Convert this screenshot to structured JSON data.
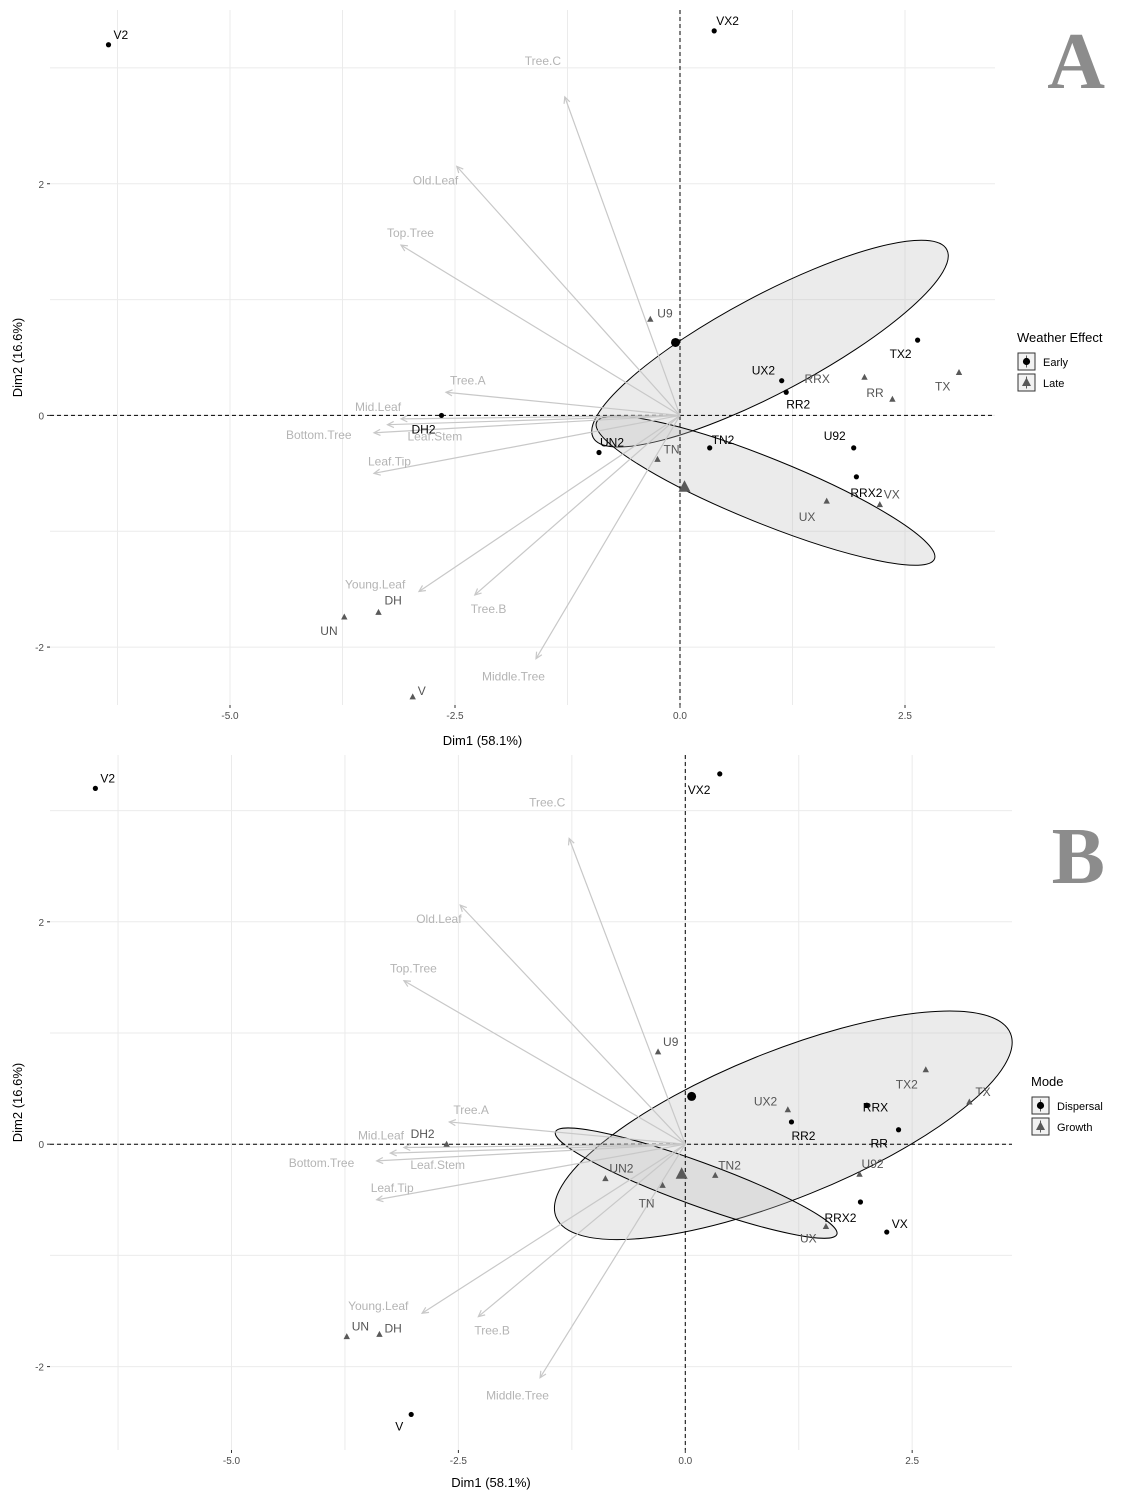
{
  "chart_data": [
    {
      "type": "scatter",
      "panel_label": "A",
      "xlabel": "Dim1 (58.1%)",
      "ylabel": "Dim2 (16.6%)",
      "xlim": [
        -7.0,
        3.5
      ],
      "ylim": [
        -2.5,
        3.5
      ],
      "x_ticks": [
        {
          "value": -5.0,
          "label": "-5.0"
        },
        {
          "value": -2.5,
          "label": "-2.5"
        },
        {
          "value": 0.0,
          "label": "0.0"
        },
        {
          "value": 2.5,
          "label": "2.5"
        }
      ],
      "y_ticks": [
        {
          "value": -2,
          "label": "-2"
        },
        {
          "value": 0,
          "label": "0"
        },
        {
          "value": 2,
          "label": "2"
        }
      ],
      "grid": true,
      "legend": {
        "title": "Weather Effect",
        "position": "right",
        "items": [
          {
            "label": "Early",
            "shape": "circle",
            "color": "#000000"
          },
          {
            "label": "Late",
            "shape": "triangle",
            "color": "#595959"
          }
        ]
      },
      "points": [
        {
          "label": "V2",
          "x": -6.35,
          "y": 3.2,
          "group": "Early"
        },
        {
          "label": "VX2",
          "x": 0.38,
          "y": 3.32,
          "group": "Early"
        },
        {
          "label": "TX2",
          "x": 2.64,
          "y": 0.65,
          "group": "Early"
        },
        {
          "label": "UX2",
          "x": 1.13,
          "y": 0.3,
          "group": "Early"
        },
        {
          "label": "RR2",
          "x": 1.18,
          "y": 0.2,
          "group": "Early"
        },
        {
          "label": "U92",
          "x": 1.93,
          "y": -0.28,
          "group": "Early"
        },
        {
          "label": "RRX2",
          "x": 1.96,
          "y": -0.53,
          "group": "Early"
        },
        {
          "label": "TN2",
          "x": 0.33,
          "y": -0.28,
          "group": "Early"
        },
        {
          "label": "UN2",
          "x": -0.9,
          "y": -0.32,
          "group": "Early"
        },
        {
          "label": "DH2",
          "x": -2.65,
          "y": 0.0,
          "group": "Early"
        },
        {
          "label": "U9",
          "x": -0.33,
          "y": 0.83,
          "group": "Late"
        },
        {
          "label": "RRX",
          "x": 2.05,
          "y": 0.33,
          "group": "Late"
        },
        {
          "label": "RR",
          "x": 2.36,
          "y": 0.14,
          "group": "Late"
        },
        {
          "label": "TX",
          "x": 3.1,
          "y": 0.37,
          "group": "Late"
        },
        {
          "label": "VX",
          "x": 2.22,
          "y": -0.77,
          "group": "Late"
        },
        {
          "label": "UX",
          "x": 1.63,
          "y": -0.74,
          "group": "Late"
        },
        {
          "label": "TN",
          "x": -0.25,
          "y": -0.38,
          "group": "Late"
        },
        {
          "label": "DH",
          "x": -3.35,
          "y": -1.7,
          "group": "Late"
        },
        {
          "label": "UN",
          "x": -3.73,
          "y": -1.74,
          "group": "Late"
        },
        {
          "label": "V",
          "x": -2.97,
          "y": -2.43,
          "group": "Late"
        }
      ],
      "centroids": [
        {
          "group": "Early",
          "x": -0.05,
          "y": 0.63
        },
        {
          "group": "Late",
          "x": 0.05,
          "y": -0.62
        }
      ],
      "ellipses": [
        {
          "group": "Early",
          "cx": 1.0,
          "cy": 0.62,
          "rx": 4.45,
          "ry": 0.84,
          "angle_deg": -28
        },
        {
          "group": "Late",
          "cx": 0.95,
          "cy": -0.65,
          "rx": 4.05,
          "ry": 0.56,
          "angle_deg": 22
        }
      ],
      "variables": [
        {
          "label": "Tree.C",
          "x": -1.28,
          "y": 2.75
        },
        {
          "label": "Old.Leaf",
          "x": -2.48,
          "y": 2.15
        },
        {
          "label": "Top.Tree",
          "x": -3.1,
          "y": 1.47
        },
        {
          "label": "Tree.A",
          "x": -2.6,
          "y": 0.2
        },
        {
          "label": "Mid.Leaf",
          "x": -3.1,
          "y": -0.03
        },
        {
          "label": "Bottom.Tree",
          "x": -3.4,
          "y": -0.15
        },
        {
          "label": "Leaf.Stem",
          "x": -3.25,
          "y": -0.08
        },
        {
          "label": "Leaf.Tip",
          "x": -3.4,
          "y": -0.5
        },
        {
          "label": "Young.Leaf",
          "x": -2.9,
          "y": -1.52
        },
        {
          "label": "Tree.B",
          "x": -2.28,
          "y": -1.55
        },
        {
          "label": "Middle.Tree",
          "x": -1.6,
          "y": -2.1
        }
      ]
    },
    {
      "type": "scatter",
      "panel_label": "B",
      "xlabel": "Dim1 (58.1%)",
      "ylabel": "Dim2 (16.6%)",
      "xlim": [
        -7.0,
        3.6
      ],
      "ylim": [
        -2.75,
        3.5
      ],
      "x_ticks": [
        {
          "value": -5.0,
          "label": "-5.0"
        },
        {
          "value": -2.5,
          "label": "-2.5"
        },
        {
          "value": 0.0,
          "label": "0.0"
        },
        {
          "value": 2.5,
          "label": "2.5"
        }
      ],
      "y_ticks": [
        {
          "value": -2,
          "label": "-2"
        },
        {
          "value": 0,
          "label": "0"
        },
        {
          "value": 2,
          "label": "2"
        }
      ],
      "grid": true,
      "legend": {
        "title": "Mode",
        "position": "right",
        "items": [
          {
            "label": "Dispersal",
            "shape": "circle",
            "color": "#000000"
          },
          {
            "label": "Growth",
            "shape": "triangle",
            "color": "#595959"
          }
        ]
      },
      "points": [
        {
          "label": "V2",
          "x": -6.5,
          "y": 3.2,
          "group": "Dispersal"
        },
        {
          "label": "VX2",
          "x": 0.38,
          "y": 3.33,
          "group": "Dispersal"
        },
        {
          "label": "RRX",
          "x": 2.0,
          "y": 0.35,
          "group": "Dispersal"
        },
        {
          "label": "RR",
          "x": 2.35,
          "y": 0.13,
          "group": "Dispersal"
        },
        {
          "label": "RR2",
          "x": 1.17,
          "y": 0.2,
          "group": "Dispersal"
        },
        {
          "label": "RRX2",
          "x": 1.93,
          "y": -0.52,
          "group": "Dispersal"
        },
        {
          "label": "VX",
          "x": 2.22,
          "y": -0.79,
          "group": "Dispersal"
        },
        {
          "label": "V",
          "x": -3.02,
          "y": -2.43,
          "group": "Dispersal"
        },
        {
          "label": "UX2",
          "x": 1.13,
          "y": 0.31,
          "group": "Growth"
        },
        {
          "label": "TX2",
          "x": 2.65,
          "y": 0.67,
          "group": "Growth"
        },
        {
          "label": "TX",
          "x": 3.13,
          "y": 0.38,
          "group": "Growth"
        },
        {
          "label": "U9",
          "x": -0.3,
          "y": 0.83,
          "group": "Growth"
        },
        {
          "label": "U92",
          "x": 1.92,
          "y": -0.27,
          "group": "Growth"
        },
        {
          "label": "UX",
          "x": 1.55,
          "y": -0.74,
          "group": "Growth"
        },
        {
          "label": "TN2",
          "x": 0.33,
          "y": -0.28,
          "group": "Growth"
        },
        {
          "label": "TN",
          "x": -0.25,
          "y": -0.37,
          "group": "Growth"
        },
        {
          "label": "UN2",
          "x": -0.88,
          "y": -0.31,
          "group": "Growth"
        },
        {
          "label": "DH2",
          "x": -2.63,
          "y": 0.0,
          "group": "Growth"
        },
        {
          "label": "DH",
          "x": -3.37,
          "y": -1.71,
          "group": "Growth"
        },
        {
          "label": "UN",
          "x": -3.73,
          "y": -1.73,
          "group": "Growth"
        }
      ],
      "centroids": [
        {
          "group": "Dispersal",
          "x": 0.07,
          "y": 0.43
        },
        {
          "group": "Growth",
          "x": -0.04,
          "y": -0.27
        }
      ],
      "ellipses": [
        {
          "group": "Dispersal",
          "cx": 1.08,
          "cy": 0.17,
          "rx": 5.4,
          "ry": 1.32,
          "angle_deg": -22
        },
        {
          "group": "Growth",
          "cx": 0.12,
          "cy": -0.35,
          "rx": 3.3,
          "ry": 0.39,
          "angle_deg": 20
        }
      ],
      "variables": [
        {
          "label": "Tree.C",
          "x": -1.28,
          "y": 2.75
        },
        {
          "label": "Old.Leaf",
          "x": -2.48,
          "y": 2.15
        },
        {
          "label": "Top.Tree",
          "x": -3.1,
          "y": 1.47
        },
        {
          "label": "Tree.A",
          "x": -2.6,
          "y": 0.2
        },
        {
          "label": "Mid.Leaf",
          "x": -3.1,
          "y": -0.03
        },
        {
          "label": "Bottom.Tree",
          "x": -3.4,
          "y": -0.15
        },
        {
          "label": "Leaf.Stem",
          "x": -3.25,
          "y": -0.08
        },
        {
          "label": "Leaf.Tip",
          "x": -3.4,
          "y": -0.5
        },
        {
          "label": "Young.Leaf",
          "x": -2.9,
          "y": -1.52
        },
        {
          "label": "Tree.B",
          "x": -2.28,
          "y": -1.55
        },
        {
          "label": "Middle.Tree",
          "x": -1.6,
          "y": -2.1
        }
      ]
    }
  ],
  "colors": {
    "point_dark": "#000000",
    "point_light": "#595959",
    "arrow": "#c8c8c8",
    "arrow_label": "#b4b4b4",
    "ellipse_stroke": "#000000",
    "ellipse_fill": "#bdbdbd",
    "grid": "#ebebeb",
    "panel_letter": "#8c8c8c"
  }
}
